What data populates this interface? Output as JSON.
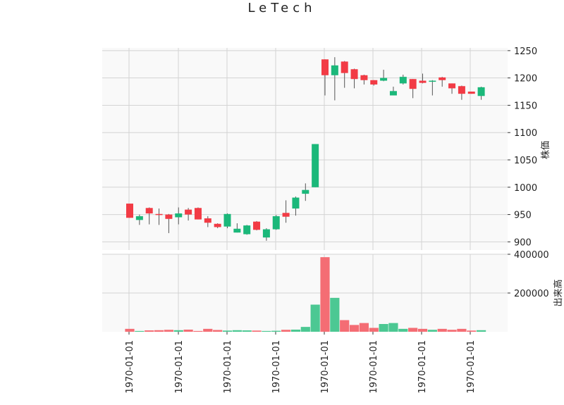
{
  "colors": {
    "up": "#1bb87a",
    "down": "#f23b45",
    "volume_up": "#4cc893",
    "volume_down": "#f46d74",
    "wick": "#555555",
    "grid": "#d3d3d3",
    "panel_bg": "#f9f9f9"
  },
  "chart_data": {
    "type": "candlestick",
    "title": "LeTech",
    "ylabel": "株価",
    "ylabel_volume": "出来高",
    "ylim": [
      885,
      1255
    ],
    "volume_ylim": [
      0,
      400000
    ],
    "y_ticks": [
      900,
      950,
      1000,
      1050,
      1100,
      1150,
      1200,
      1250
    ],
    "volume_ticks": [
      200000,
      400000
    ],
    "volume_tick_labels": [
      "200000",
      "400000"
    ],
    "x_tick_labels": [
      "1970-01-01",
      "1970-01-01",
      "1970-01-01",
      "1970-01-01",
      "1970-01-01",
      "1970-01-01",
      "1970-01-01",
      "1970-01-01"
    ],
    "candles": [
      {
        "open": 970,
        "close": 944,
        "high": 970,
        "low": 944,
        "volume": 15000
      },
      {
        "open": 940,
        "close": 947,
        "high": 950,
        "low": 931,
        "volume": 4000
      },
      {
        "open": 962,
        "close": 952,
        "high": 963,
        "low": 932,
        "volume": 7000
      },
      {
        "open": 951,
        "close": 950,
        "high": 961,
        "low": 931,
        "volume": 8000
      },
      {
        "open": 950,
        "close": 942,
        "high": 951,
        "low": 916,
        "volume": 10000
      },
      {
        "open": 945,
        "close": 952,
        "high": 963,
        "low": 932,
        "volume": 8000
      },
      {
        "open": 959,
        "close": 950,
        "high": 962,
        "low": 939,
        "volume": 11000
      },
      {
        "open": 962,
        "close": 941,
        "high": 963,
        "low": 941,
        "volume": 4000
      },
      {
        "open": 943,
        "close": 935,
        "high": 947,
        "low": 927,
        "volume": 15000
      },
      {
        "open": 933,
        "close": 927,
        "high": 934,
        "low": 925,
        "volume": 9000
      },
      {
        "open": 928,
        "close": 951,
        "high": 952,
        "low": 925,
        "volume": 6000
      },
      {
        "open": 917,
        "close": 924,
        "high": 934,
        "low": 917,
        "volume": 8000
      },
      {
        "open": 914,
        "close": 930,
        "high": 931,
        "low": 913,
        "volume": 7000
      },
      {
        "open": 937,
        "close": 922,
        "high": 938,
        "low": 921,
        "volume": 6000
      },
      {
        "open": 908,
        "close": 923,
        "high": 925,
        "low": 902,
        "volume": 4000
      },
      {
        "open": 923,
        "close": 947,
        "high": 949,
        "low": 922,
        "volume": 5000
      },
      {
        "open": 953,
        "close": 946,
        "high": 976,
        "low": 935,
        "volume": 10000
      },
      {
        "open": 961,
        "close": 981,
        "high": 983,
        "low": 948,
        "volume": 11000
      },
      {
        "open": 988,
        "close": 995,
        "high": 1007,
        "low": 975,
        "volume": 25000
      },
      {
        "open": 1000,
        "close": 1079,
        "high": 1079,
        "low": 1000,
        "volume": 140000
      },
      {
        "open": 1234,
        "close": 1205,
        "high": 1234,
        "low": 1168,
        "volume": 385000
      },
      {
        "open": 1205,
        "close": 1223,
        "high": 1238,
        "low": 1159,
        "volume": 175000
      },
      {
        "open": 1230,
        "close": 1209,
        "high": 1231,
        "low": 1182,
        "volume": 60000
      },
      {
        "open": 1216,
        "close": 1198,
        "high": 1217,
        "low": 1181,
        "volume": 35000
      },
      {
        "open": 1205,
        "close": 1196,
        "high": 1206,
        "low": 1188,
        "volume": 45000
      },
      {
        "open": 1196,
        "close": 1188,
        "high": 1196,
        "low": 1186,
        "volume": 20000
      },
      {
        "open": 1195,
        "close": 1200,
        "high": 1215,
        "low": 1194,
        "volume": 40000
      },
      {
        "open": 1168,
        "close": 1176,
        "high": 1184,
        "low": 1168,
        "volume": 45000
      },
      {
        "open": 1190,
        "close": 1202,
        "high": 1206,
        "low": 1188,
        "volume": 15000
      },
      {
        "open": 1198,
        "close": 1180,
        "high": 1198,
        "low": 1163,
        "volume": 20000
      },
      {
        "open": 1195,
        "close": 1191,
        "high": 1208,
        "low": 1190,
        "volume": 15000
      },
      {
        "open": 1193,
        "close": 1195,
        "high": 1196,
        "low": 1168,
        "volume": 10000
      },
      {
        "open": 1201,
        "close": 1196,
        "high": 1202,
        "low": 1184,
        "volume": 15000
      },
      {
        "open": 1190,
        "close": 1181,
        "high": 1190,
        "low": 1171,
        "volume": 10000
      },
      {
        "open": 1185,
        "close": 1171,
        "high": 1186,
        "low": 1160,
        "volume": 15000
      },
      {
        "open": 1175,
        "close": 1171,
        "high": 1175,
        "low": 1171,
        "volume": 6000
      },
      {
        "open": 1167,
        "close": 1183,
        "high": 1184,
        "low": 1160,
        "volume": 8000
      }
    ]
  }
}
